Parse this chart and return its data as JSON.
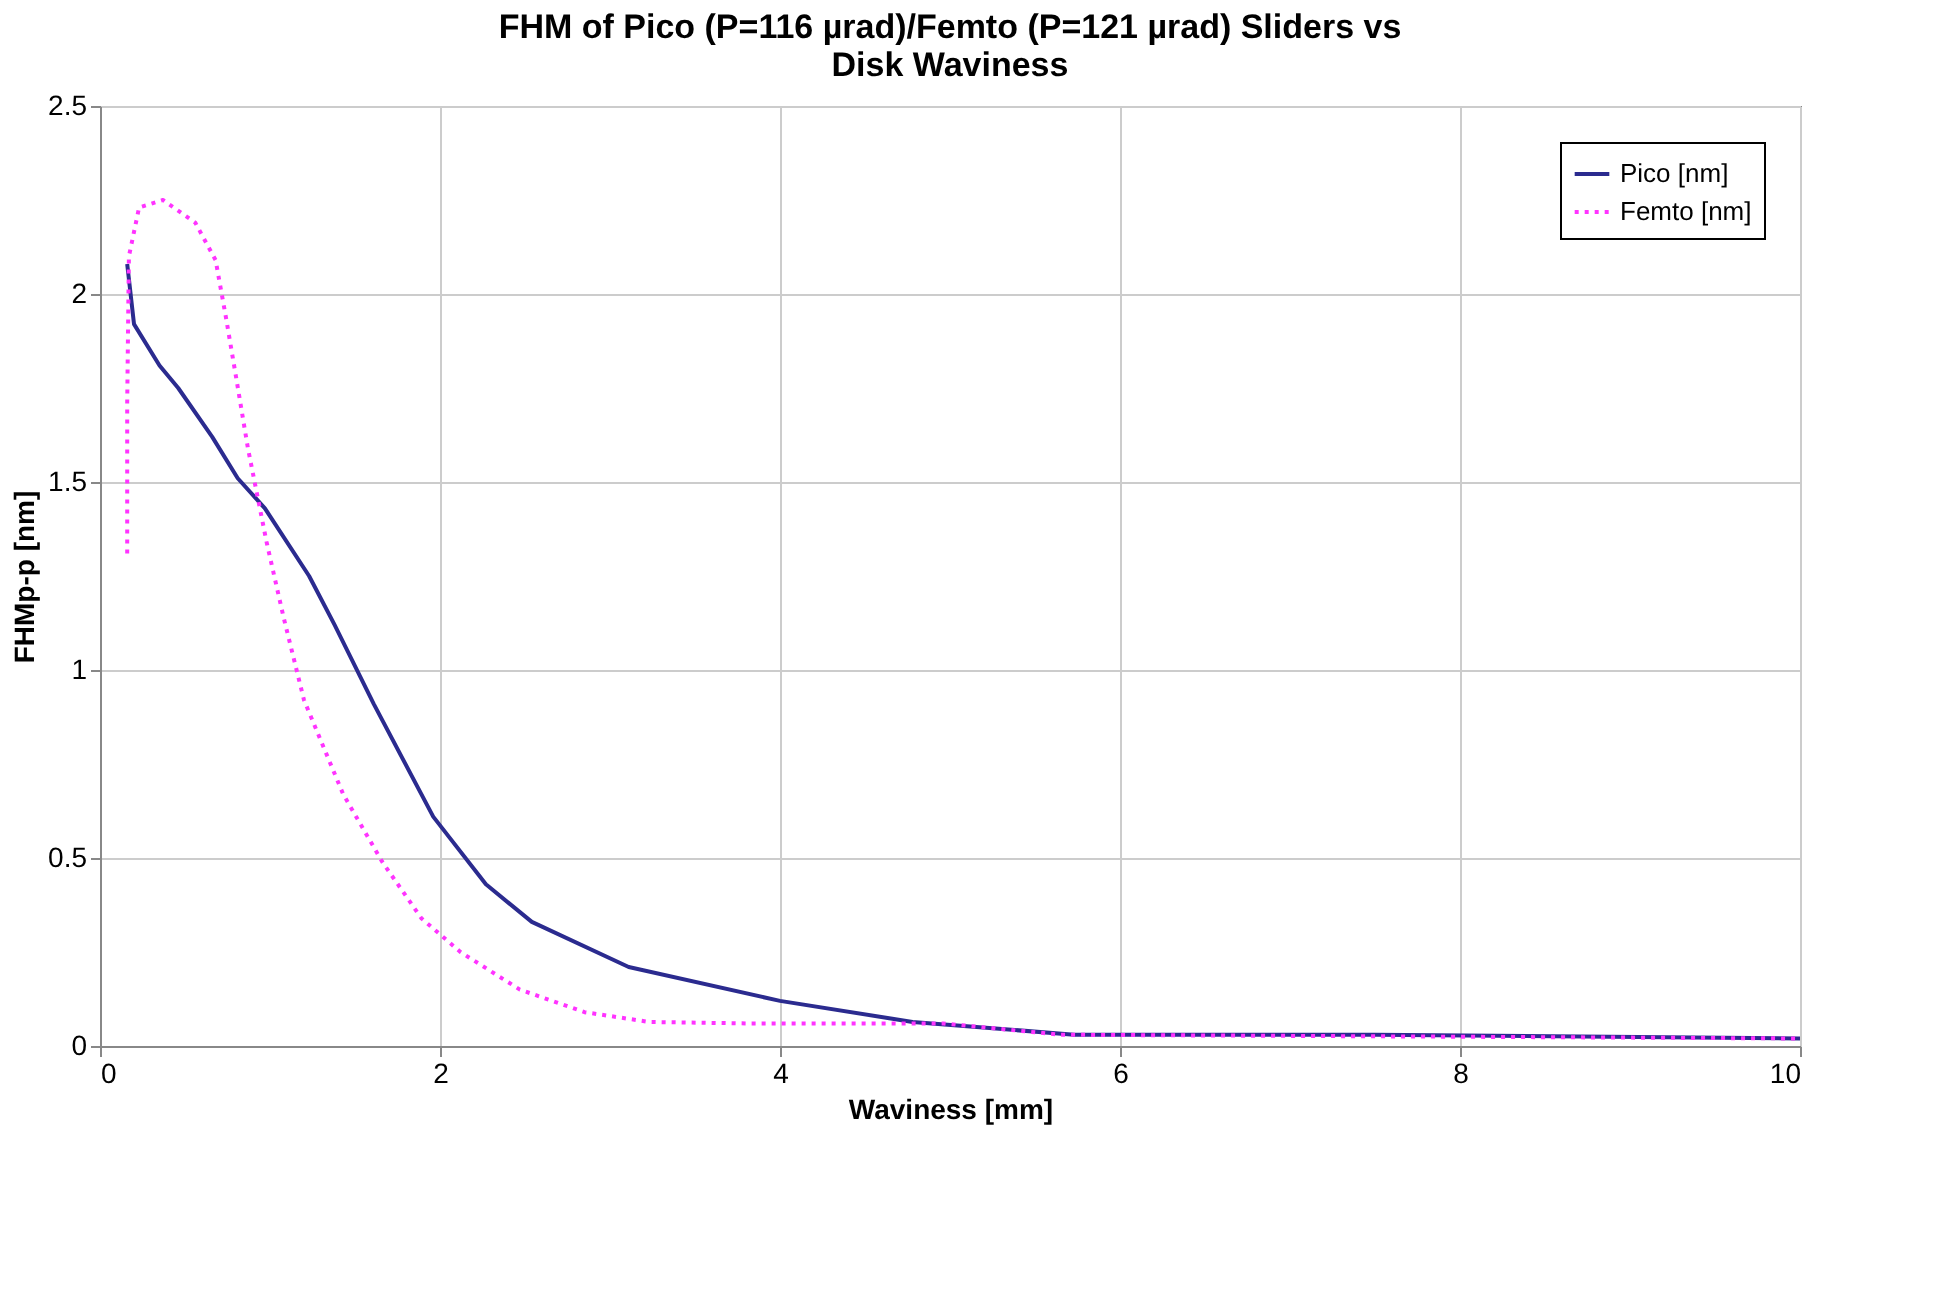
{
  "chart_data": {
    "type": "line",
    "title": [
      "FHM of Pico (P=116 µrad)/Femto (P=121 µrad) Sliders vs",
      "Disk Waviness"
    ],
    "xlabel": "Waviness [mm]",
    "ylabel": "FHMp-p [nm]",
    "xlim": [
      0,
      10
    ],
    "xticks": [
      0,
      2,
      4,
      6,
      8,
      10
    ],
    "ylim": [
      0,
      2.5
    ],
    "yticks": [
      0,
      0.5,
      1,
      1.5,
      2,
      2.5
    ],
    "grid": true,
    "legend": "top right",
    "series": [
      {
        "name": "Pico [nm]",
        "color": "#2b2b8f",
        "line_style": "solid",
        "x": [
          0.16,
          0.2,
          0.35,
          0.46,
          0.66,
          0.81,
          0.97,
          1.23,
          1.38,
          1.61,
          1.96,
          2.27,
          2.54,
          3.11,
          4.0,
          4.78,
          5.73,
          7.5,
          10
        ],
        "values": [
          2.08,
          1.92,
          1.81,
          1.75,
          1.62,
          1.51,
          1.43,
          1.25,
          1.12,
          0.91,
          0.61,
          0.43,
          0.33,
          0.21,
          0.12,
          0.064,
          0.03,
          0.03,
          0.02
        ]
      },
      {
        "name": "Femto [nm]",
        "color": "#ff33ff",
        "line_style": "dotted",
        "x": [
          0.16,
          0.16,
          0.17,
          0.23,
          0.37,
          0.56,
          0.68,
          0.74,
          0.8,
          0.87,
          0.98,
          1.08,
          1.2,
          1.43,
          1.66,
          1.89,
          2.12,
          2.47,
          2.85,
          3.23,
          3.8,
          4.96,
          5.65,
          10
        ],
        "values": [
          1.31,
          1.71,
          2.1,
          2.23,
          2.25,
          2.19,
          2.09,
          1.94,
          1.78,
          1.59,
          1.34,
          1.14,
          0.92,
          0.67,
          0.49,
          0.34,
          0.25,
          0.15,
          0.09,
          0.064,
          0.06,
          0.06,
          0.03,
          0.02
        ]
      }
    ]
  }
}
